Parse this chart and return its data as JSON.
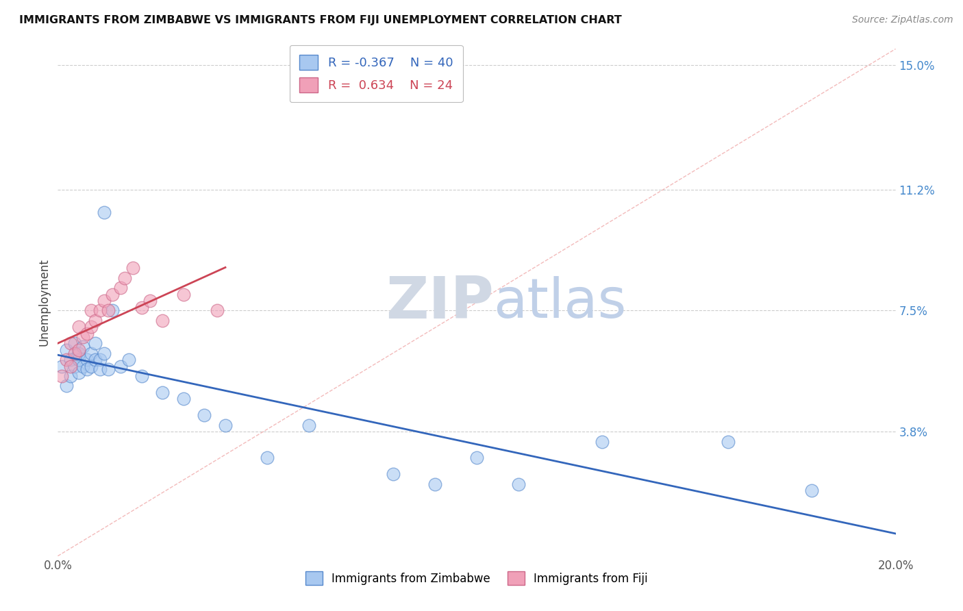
{
  "title": "IMMIGRANTS FROM ZIMBABWE VS IMMIGRANTS FROM FIJI UNEMPLOYMENT CORRELATION CHART",
  "source": "Source: ZipAtlas.com",
  "ylabel": "Unemployment",
  "xlim": [
    0.0,
    0.2
  ],
  "ylim": [
    0.0,
    0.155
  ],
  "ytick_vals": [
    0.038,
    0.075,
    0.112,
    0.15
  ],
  "ytick_labels": [
    "3.8%",
    "7.5%",
    "11.2%",
    "15.0%"
  ],
  "legend_blue_r": "-0.367",
  "legend_blue_n": "40",
  "legend_pink_r": "0.634",
  "legend_pink_n": "24",
  "blue_scatter_color": "#A8C8F0",
  "blue_edge_color": "#5588CC",
  "pink_scatter_color": "#F0A0B8",
  "pink_edge_color": "#CC6688",
  "blue_line_color": "#3366BB",
  "pink_line_color": "#CC4455",
  "diag_color": "#F0AAAA",
  "background_color": "#FFFFFF",
  "grid_color": "#CCCCCC",
  "zimbabwe_x": [
    0.001,
    0.002,
    0.002,
    0.003,
    0.003,
    0.004,
    0.004,
    0.005,
    0.005,
    0.005,
    0.006,
    0.006,
    0.007,
    0.007,
    0.008,
    0.008,
    0.009,
    0.009,
    0.01,
    0.01,
    0.011,
    0.011,
    0.012,
    0.013,
    0.015,
    0.017,
    0.02,
    0.025,
    0.03,
    0.035,
    0.04,
    0.05,
    0.06,
    0.08,
    0.09,
    0.1,
    0.11,
    0.13,
    0.16,
    0.18
  ],
  "zimbabwe_y": [
    0.058,
    0.063,
    0.052,
    0.06,
    0.055,
    0.058,
    0.065,
    0.06,
    0.056,
    0.062,
    0.058,
    0.064,
    0.06,
    0.057,
    0.062,
    0.058,
    0.06,
    0.065,
    0.06,
    0.057,
    0.105,
    0.062,
    0.057,
    0.075,
    0.058,
    0.06,
    0.055,
    0.05,
    0.048,
    0.043,
    0.04,
    0.03,
    0.04,
    0.025,
    0.022,
    0.03,
    0.022,
    0.035,
    0.035,
    0.02
  ],
  "fiji_x": [
    0.001,
    0.002,
    0.003,
    0.003,
    0.004,
    0.005,
    0.005,
    0.006,
    0.007,
    0.008,
    0.008,
    0.009,
    0.01,
    0.011,
    0.012,
    0.013,
    0.015,
    0.016,
    0.018,
    0.02,
    0.022,
    0.025,
    0.03,
    0.038
  ],
  "fiji_y": [
    0.055,
    0.06,
    0.058,
    0.065,
    0.062,
    0.063,
    0.07,
    0.067,
    0.068,
    0.07,
    0.075,
    0.072,
    0.075,
    0.078,
    0.075,
    0.08,
    0.082,
    0.085,
    0.088,
    0.076,
    0.078,
    0.072,
    0.08,
    0.075
  ]
}
